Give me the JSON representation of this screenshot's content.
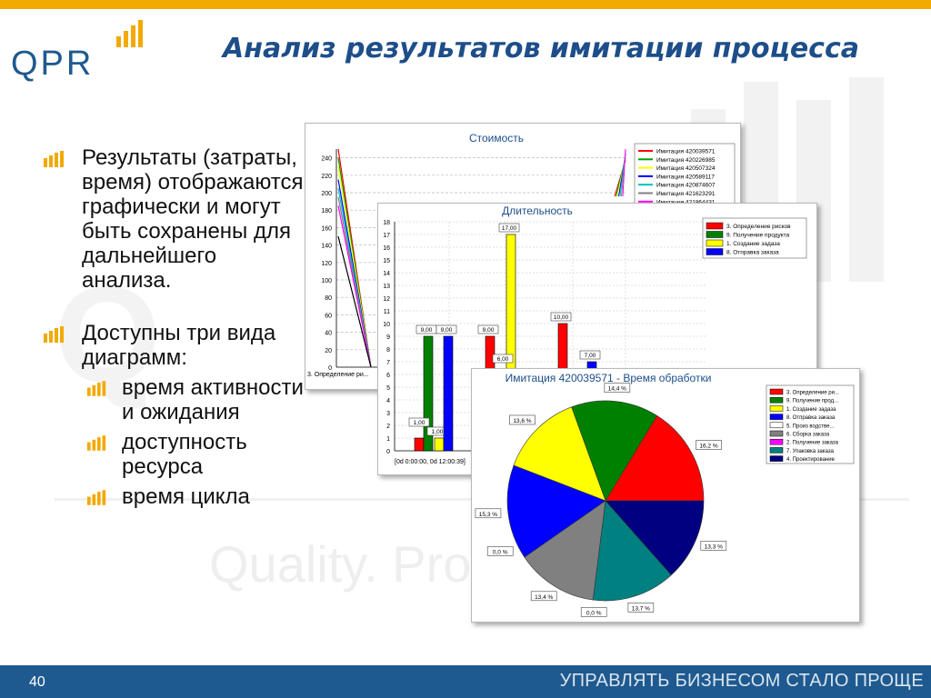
{
  "slide": {
    "title": "Анализ результатов имитации процесса",
    "watermark": "Quality. Pro                s.",
    "page_number": "40",
    "slogan": "УПРАВЛЯТЬ БИЗНЕСОМ СТАЛО ПРОЩЕ",
    "logo_text": "QPR"
  },
  "bullets": [
    {
      "level": 1,
      "text": "Результаты (затраты, время) отображаются графически и могут быть сохранены для дальнейшего анализа."
    },
    {
      "level": 1,
      "text": "Доступны три вида диаграмм:"
    },
    {
      "level": 2,
      "text": "время активности и ожидания"
    },
    {
      "level": 2,
      "text": "доступность ресурса"
    },
    {
      "level": 2,
      "text": "время цикла"
    }
  ],
  "colors": {
    "title": "#1d4e89",
    "accent": "#f2a900",
    "footer": "#1e5a8f"
  },
  "chart_data": [
    {
      "type": "line",
      "title": "Стоимость",
      "y_ticks": [
        "240",
        "220",
        "200",
        "180",
        "160",
        "140",
        "120",
        "100",
        "80",
        "60",
        "40",
        "20",
        "0"
      ],
      "ylim": [
        0,
        250
      ],
      "x_ticks": [
        "3. Определение ри..."
      ],
      "series": [
        {
          "name": "Имитация 420039571",
          "color": "#ff0000",
          "values": [
            250,
            0
          ]
        },
        {
          "name": "Имитация 420226985",
          "color": "#00a000",
          "values": [
            240,
            0
          ]
        },
        {
          "name": "Имитация 420507324",
          "color": "#ffff00",
          "values": [
            230,
            0
          ]
        },
        {
          "name": "Имитация 420589117",
          "color": "#0000ff",
          "values": [
            215,
            0
          ]
        },
        {
          "name": "Имитация 420874607",
          "color": "#00c0c0",
          "values": [
            205,
            0
          ]
        },
        {
          "name": "Имитация 421623291",
          "color": "#808080",
          "values": [
            195,
            0
          ]
        },
        {
          "name": "Имитация 421864431",
          "color": "#ff00ff",
          "values": [
            185,
            0
          ]
        },
        {
          "name": "",
          "color": "#000000",
          "values": [
            150,
            0
          ]
        }
      ]
    },
    {
      "type": "bar",
      "title": "Длительность",
      "ylim": [
        0,
        18
      ],
      "y_ticks": [
        "18",
        "17",
        "16",
        "15",
        "14",
        "13",
        "12",
        "11",
        "10",
        "9",
        "8",
        "7",
        "6",
        "5",
        "4",
        "3",
        "2",
        "1",
        "0"
      ],
      "x_ticks": [
        "[0d 0:00:00, 0d 12:00:39]"
      ],
      "series": [
        {
          "name": "3. Определение рисков",
          "color": "#ff0000"
        },
        {
          "name": "9. Получение продукта",
          "color": "#008000"
        },
        {
          "name": "1. Создание задаза",
          "color": "#ffff00"
        },
        {
          "name": "8. Отправка заказа",
          "color": "#0000ff"
        }
      ],
      "bars": [
        {
          "series": 0,
          "value": 1,
          "label": ""
        },
        {
          "series": 1,
          "value": 9,
          "label": "9,00"
        },
        {
          "series": 2,
          "value": 1,
          "label": "1,00"
        },
        {
          "series": 3,
          "value": 9,
          "label": "9,00"
        },
        {
          "series": 0,
          "value": 9,
          "label": "9,00"
        },
        {
          "series": 2,
          "value": 17,
          "label": "17,00"
        },
        {
          "series": 0,
          "value": 10,
          "label": "10,00"
        },
        {
          "series": 3,
          "value": 7,
          "label": "7,00"
        }
      ],
      "extra_labels": [
        "1,00",
        "6,00"
      ]
    },
    {
      "type": "pie",
      "title": "Имитация 420039571 - Время обработки",
      "slices": [
        {
          "name": "3. Определение ри...",
          "value": 16.2,
          "label": "16,2 %",
          "color": "#ff0000"
        },
        {
          "name": "9. Получение прод...",
          "value": 14.4,
          "label": "14,4 %",
          "color": "#008000"
        },
        {
          "name": "1. Создание задаза",
          "value": 13.6,
          "label": "13,6 %",
          "color": "#ffff00"
        },
        {
          "name": "8. Отправка заказа",
          "value": 15.3,
          "label": "15,3 %",
          "color": "#0000ff"
        },
        {
          "name": "5. Произ водстве...",
          "value": 0.0,
          "label": "0,0 %",
          "color": "#ffffff"
        },
        {
          "name": "6. Сборка заказа",
          "value": 13.4,
          "label": "13,4 %",
          "color": "#808080"
        },
        {
          "name": "2. Получение заказа",
          "value": 0.0,
          "label": "0,0 %",
          "color": "#ff00ff"
        },
        {
          "name": "7. Упаковка заказа",
          "value": 13.7,
          "label": "13,7 %",
          "color": "#008080"
        },
        {
          "name": "4. Проектирование",
          "value": 13.3,
          "label": "13,3 %",
          "color": "#000080"
        }
      ]
    }
  ]
}
